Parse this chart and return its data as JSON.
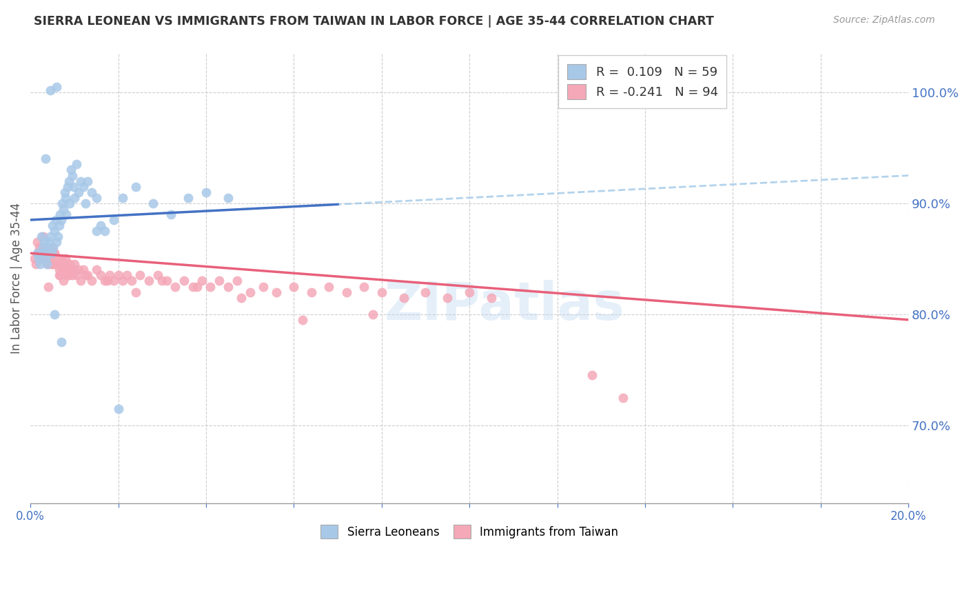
{
  "title": "SIERRA LEONEAN VS IMMIGRANTS FROM TAIWAN IN LABOR FORCE | AGE 35-44 CORRELATION CHART",
  "source": "Source: ZipAtlas.com",
  "ylabel": "In Labor Force | Age 35-44",
  "right_yticks": [
    70.0,
    80.0,
    90.0,
    100.0
  ],
  "xmin": 0.0,
  "xmax": 20.0,
  "ymin": 63.0,
  "ymax": 103.5,
  "r1": 0.109,
  "n1": 59,
  "r2": -0.241,
  "n2": 94,
  "color_blue_scatter": "#A8C8E8",
  "color_pink_scatter": "#F4A8B8",
  "color_blue_line": "#4472C4",
  "color_pink_line": "#E8607A",
  "color_blue_dash": "#A0C8E8",
  "blue_line_x0": 0.0,
  "blue_line_y0": 88.5,
  "blue_line_x1": 20.0,
  "blue_line_y1": 92.5,
  "blue_solid_xmax": 7.0,
  "pink_line_x0": 0.0,
  "pink_line_y0": 85.5,
  "pink_line_x1": 20.0,
  "pink_line_y1": 79.5,
  "sierra_x": [
    0.15,
    0.18,
    0.22,
    0.25,
    0.28,
    0.3,
    0.32,
    0.35,
    0.38,
    0.4,
    0.42,
    0.45,
    0.48,
    0.5,
    0.52,
    0.55,
    0.58,
    0.6,
    0.62,
    0.65,
    0.68,
    0.7,
    0.72,
    0.75,
    0.78,
    0.8,
    0.82,
    0.85,
    0.88,
    0.9,
    0.92,
    0.95,
    0.98,
    1.0,
    1.05,
    1.1,
    1.15,
    1.2,
    1.25,
    1.3,
    1.4,
    1.5,
    1.6,
    1.7,
    1.9,
    2.1,
    2.4,
    2.8,
    3.2,
    3.6,
    4.0,
    4.5,
    2.0,
    0.6,
    0.45,
    0.35,
    0.55,
    0.7,
    1.5
  ],
  "sierra_y": [
    85.5,
    85.0,
    84.5,
    87.0,
    86.0,
    85.5,
    86.5,
    85.0,
    84.5,
    86.0,
    86.5,
    87.0,
    85.5,
    88.0,
    86.0,
    87.5,
    88.5,
    86.5,
    87.0,
    88.0,
    89.0,
    88.5,
    90.0,
    89.5,
    91.0,
    90.5,
    89.0,
    91.5,
    92.0,
    90.0,
    93.0,
    92.5,
    91.5,
    90.5,
    93.5,
    91.0,
    92.0,
    91.5,
    90.0,
    92.0,
    91.0,
    90.5,
    88.0,
    87.5,
    88.5,
    90.5,
    91.5,
    90.0,
    89.0,
    90.5,
    91.0,
    90.5,
    71.5,
    100.5,
    100.2,
    94.0,
    80.0,
    77.5,
    87.5
  ],
  "taiwan_x": [
    0.1,
    0.12,
    0.15,
    0.18,
    0.2,
    0.22,
    0.25,
    0.28,
    0.3,
    0.32,
    0.35,
    0.38,
    0.4,
    0.42,
    0.45,
    0.48,
    0.5,
    0.52,
    0.55,
    0.58,
    0.6,
    0.62,
    0.65,
    0.68,
    0.7,
    0.72,
    0.75,
    0.78,
    0.8,
    0.82,
    0.85,
    0.88,
    0.9,
    0.92,
    0.95,
    0.98,
    1.0,
    1.05,
    1.1,
    1.15,
    1.2,
    1.3,
    1.4,
    1.5,
    1.6,
    1.7,
    1.8,
    1.9,
    2.0,
    2.1,
    2.2,
    2.3,
    2.5,
    2.7,
    2.9,
    3.1,
    3.3,
    3.5,
    3.7,
    3.9,
    4.1,
    4.3,
    4.5,
    4.7,
    5.0,
    5.3,
    5.6,
    6.0,
    6.4,
    6.8,
    7.2,
    7.6,
    8.0,
    8.5,
    9.0,
    9.5,
    10.0,
    10.5,
    0.55,
    0.65,
    0.4,
    0.75,
    0.85,
    1.25,
    1.75,
    2.4,
    3.0,
    3.8,
    4.8,
    6.2,
    7.8,
    12.8,
    13.5,
    0.3
  ],
  "taiwan_y": [
    85.0,
    84.5,
    86.5,
    85.5,
    86.0,
    85.0,
    85.5,
    85.0,
    86.0,
    85.0,
    85.5,
    85.0,
    84.5,
    85.0,
    85.0,
    84.5,
    86.0,
    84.5,
    85.5,
    84.5,
    85.0,
    84.5,
    84.0,
    83.5,
    85.0,
    84.0,
    84.5,
    84.0,
    85.0,
    83.5,
    84.5,
    83.5,
    84.5,
    84.0,
    83.5,
    84.0,
    84.5,
    83.5,
    84.0,
    83.0,
    84.0,
    83.5,
    83.0,
    84.0,
    83.5,
    83.0,
    83.5,
    83.0,
    83.5,
    83.0,
    83.5,
    83.0,
    83.5,
    83.0,
    83.5,
    83.0,
    82.5,
    83.0,
    82.5,
    83.0,
    82.5,
    83.0,
    82.5,
    83.0,
    82.0,
    82.5,
    82.0,
    82.5,
    82.0,
    82.5,
    82.0,
    82.5,
    82.0,
    81.5,
    82.0,
    81.5,
    82.0,
    81.5,
    85.5,
    83.5,
    82.5,
    83.0,
    83.5,
    83.5,
    83.0,
    82.0,
    83.0,
    82.5,
    81.5,
    79.5,
    80.0,
    74.5,
    72.5,
    87.0
  ]
}
